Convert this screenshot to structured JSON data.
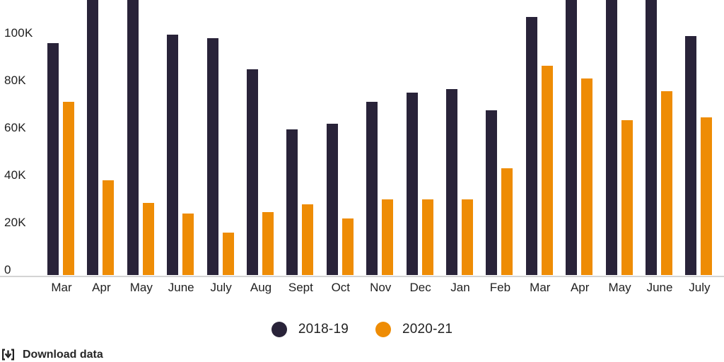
{
  "chart_data": {
    "type": "bar",
    "categories": [
      "Mar",
      "Apr",
      "May",
      "June",
      "July",
      "Aug",
      "Sept",
      "Oct",
      "Nov",
      "Dec",
      "Jan",
      "Feb",
      "Mar",
      "Apr",
      "May",
      "June",
      "July"
    ],
    "series": [
      {
        "name": "2018-19",
        "color": "#292339",
        "values": [
          98000,
          120000,
          120000,
          101500,
          100000,
          87000,
          61500,
          64000,
          73000,
          77000,
          78500,
          69500,
          109000,
          120000,
          120000,
          120000,
          101000
        ]
      },
      {
        "name": "2020-21",
        "color": "#ee8c05",
        "values": [
          73000,
          40000,
          30500,
          26000,
          18000,
          26500,
          30000,
          24000,
          32000,
          32000,
          32000,
          45000,
          88500,
          83000,
          65500,
          77500,
          66500
        ]
      }
    ],
    "title": "",
    "xlabel": "",
    "ylabel": "",
    "y_ticks": [
      {
        "label": "0",
        "value": 0
      },
      {
        "label": "20K",
        "value": 20000
      },
      {
        "label": "40K",
        "value": 40000
      },
      {
        "label": "60K",
        "value": 60000
      },
      {
        "label": "80K",
        "value": 80000
      },
      {
        "label": "100K",
        "value": 100000
      }
    ],
    "ylim": [
      0,
      116000
    ],
    "grid": false,
    "legend_position": "bottom",
    "axis_line_color": "#d4d4d4",
    "label_color": "#1f1f1f"
  },
  "footer": {
    "download_label": "Download data"
  }
}
